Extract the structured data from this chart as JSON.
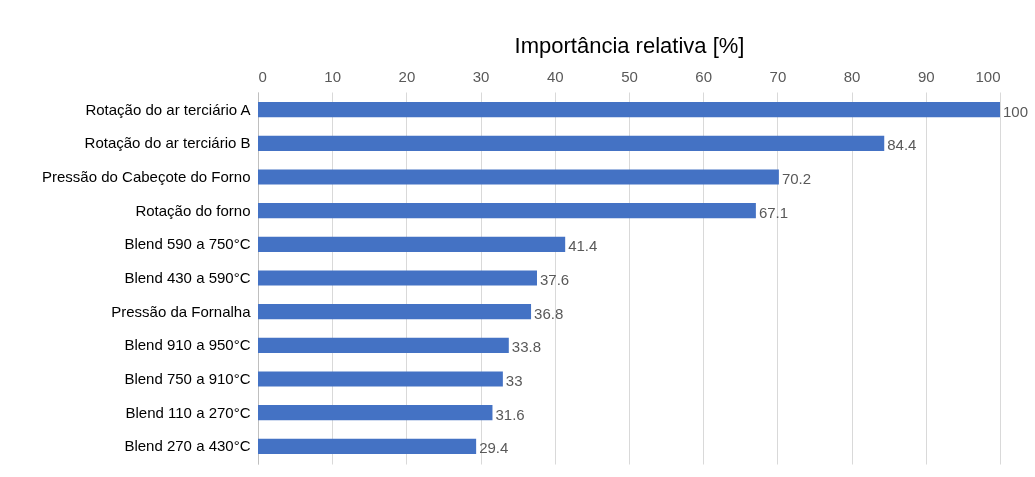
{
  "chart_data": {
    "type": "bar",
    "orientation": "horizontal",
    "xlabel": "Importância relativa [%]",
    "categories": [
      "Rotação do ar terciário A",
      "Rotação do ar terciário B",
      "Pressão do Cabeçote do Forno",
      "Rotação do forno",
      "Blend 590 a 750°C",
      "Blend 430 a 590°C",
      "Pressão da Fornalha",
      "Blend 910 a 950°C",
      "Blend  750 a 910°C",
      "Blend 110 a 270°C",
      "Blend 270 a 430°C"
    ],
    "values": [
      100,
      84.4,
      70.2,
      67.1,
      41.4,
      37.6,
      36.8,
      33.8,
      33,
      31.6,
      29.4
    ],
    "color": "#4472c4",
    "xlim": [
      0,
      100
    ],
    "xticks": [
      0,
      10,
      20,
      30,
      40,
      50,
      60,
      70,
      80,
      90,
      100
    ],
    "grid": "x",
    "data_labels": true
  }
}
